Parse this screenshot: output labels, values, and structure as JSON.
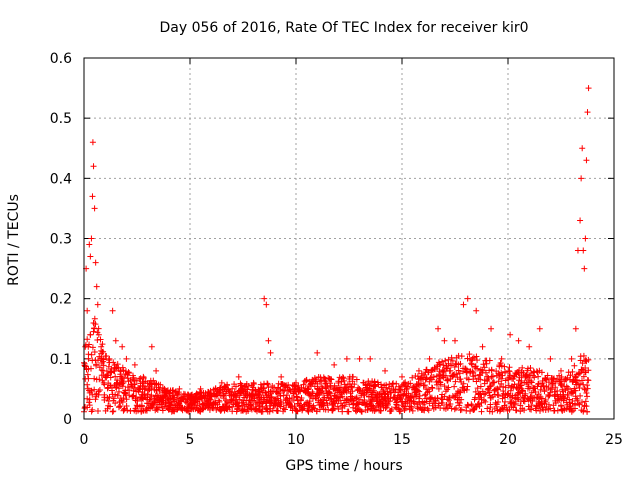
{
  "chart_data": {
    "type": "scatter",
    "title": "Day 056 of 2016, Rate Of TEC Index for receiver kir0",
    "xlabel": "GPS time / hours",
    "ylabel": "ROTI / TECUs",
    "xlim": [
      0,
      25
    ],
    "ylim": [
      0,
      0.6
    ],
    "x_ticks": [
      0,
      5,
      10,
      15,
      20,
      25
    ],
    "y_ticks": [
      0,
      0.1,
      0.2,
      0.3,
      0.4,
      0.5,
      0.6
    ],
    "x_tick_labels": [
      "0",
      "5",
      "10",
      "15",
      "20",
      "25"
    ],
    "y_tick_labels": [
      "0",
      "0.1",
      "0.2",
      "0.3",
      "0.4",
      "0.5",
      "0.6"
    ],
    "grid": true,
    "marker": "+",
    "color": "#ff0000",
    "series": [
      {
        "name": "kir0",
        "points": [
          [
            0.05,
            0.02
          ],
          [
            0.1,
            0.25
          ],
          [
            0.15,
            0.18
          ],
          [
            0.2,
            0.12
          ],
          [
            0.25,
            0.29
          ],
          [
            0.3,
            0.27
          ],
          [
            0.35,
            0.3
          ],
          [
            0.4,
            0.37
          ],
          [
            0.42,
            0.46
          ],
          [
            0.45,
            0.42
          ],
          [
            0.5,
            0.35
          ],
          [
            0.55,
            0.26
          ],
          [
            0.6,
            0.22
          ],
          [
            0.65,
            0.19
          ],
          [
            0.7,
            0.14
          ],
          [
            0.8,
            0.1
          ],
          [
            0.9,
            0.08
          ],
          [
            1.0,
            0.07
          ],
          [
            1.2,
            0.1
          ],
          [
            1.35,
            0.18
          ],
          [
            1.5,
            0.13
          ],
          [
            1.8,
            0.12
          ],
          [
            2.0,
            0.1
          ],
          [
            2.4,
            0.09
          ],
          [
            2.8,
            0.07
          ],
          [
            3.2,
            0.12
          ],
          [
            3.4,
            0.08
          ],
          [
            3.8,
            0.05
          ],
          [
            4.5,
            0.05
          ],
          [
            5.5,
            0.05
          ],
          [
            6.5,
            0.06
          ],
          [
            7.3,
            0.07
          ],
          [
            8.0,
            0.06
          ],
          [
            8.5,
            0.2
          ],
          [
            8.6,
            0.19
          ],
          [
            8.7,
            0.13
          ],
          [
            8.8,
            0.11
          ],
          [
            9.3,
            0.07
          ],
          [
            10.0,
            0.06
          ],
          [
            11.0,
            0.11
          ],
          [
            11.8,
            0.09
          ],
          [
            12.4,
            0.1
          ],
          [
            13.0,
            0.1
          ],
          [
            13.5,
            0.1
          ],
          [
            14.2,
            0.08
          ],
          [
            15.0,
            0.07
          ],
          [
            15.8,
            0.08
          ],
          [
            16.3,
            0.1
          ],
          [
            16.7,
            0.15
          ],
          [
            17.0,
            0.13
          ],
          [
            17.5,
            0.13
          ],
          [
            17.9,
            0.19
          ],
          [
            18.1,
            0.2
          ],
          [
            18.5,
            0.18
          ],
          [
            18.8,
            0.12
          ],
          [
            19.2,
            0.15
          ],
          [
            19.7,
            0.1
          ],
          [
            20.1,
            0.14
          ],
          [
            20.5,
            0.13
          ],
          [
            21.0,
            0.12
          ],
          [
            21.5,
            0.15
          ],
          [
            22.0,
            0.1
          ],
          [
            22.5,
            0.08
          ],
          [
            23.0,
            0.1
          ],
          [
            23.2,
            0.15
          ],
          [
            23.3,
            0.28
          ],
          [
            23.4,
            0.33
          ],
          [
            23.45,
            0.4
          ],
          [
            23.5,
            0.45
          ],
          [
            23.55,
            0.28
          ],
          [
            23.6,
            0.25
          ],
          [
            23.65,
            0.3
          ],
          [
            23.7,
            0.43
          ],
          [
            23.75,
            0.51
          ],
          [
            23.8,
            0.55
          ]
        ],
        "envelope": [
          [
            0.0,
            0.05,
            0.12
          ],
          [
            0.2,
            0.05,
            0.15
          ],
          [
            0.5,
            0.05,
            0.17
          ],
          [
            0.8,
            0.05,
            0.14
          ],
          [
            1.0,
            0.04,
            0.11
          ],
          [
            1.5,
            0.04,
            0.1
          ],
          [
            2.0,
            0.04,
            0.08
          ],
          [
            2.5,
            0.03,
            0.07
          ],
          [
            3.0,
            0.03,
            0.07
          ],
          [
            4.0,
            0.03,
            0.05
          ],
          [
            5.0,
            0.02,
            0.04
          ],
          [
            6.0,
            0.02,
            0.05
          ],
          [
            7.0,
            0.03,
            0.06
          ],
          [
            8.0,
            0.03,
            0.06
          ],
          [
            9.0,
            0.03,
            0.06
          ],
          [
            10.0,
            0.02,
            0.06
          ],
          [
            11.0,
            0.03,
            0.07
          ],
          [
            12.0,
            0.03,
            0.07
          ],
          [
            13.0,
            0.03,
            0.07
          ],
          [
            14.0,
            0.03,
            0.06
          ],
          [
            15.0,
            0.03,
            0.06
          ],
          [
            16.0,
            0.03,
            0.08
          ],
          [
            17.0,
            0.04,
            0.1
          ],
          [
            18.0,
            0.04,
            0.11
          ],
          [
            19.0,
            0.03,
            0.1
          ],
          [
            20.0,
            0.03,
            0.09
          ],
          [
            21.0,
            0.03,
            0.09
          ],
          [
            22.0,
            0.03,
            0.07
          ],
          [
            23.0,
            0.03,
            0.08
          ],
          [
            23.5,
            0.04,
            0.12
          ],
          [
            23.8,
            0.03,
            0.1
          ]
        ]
      }
    ]
  }
}
